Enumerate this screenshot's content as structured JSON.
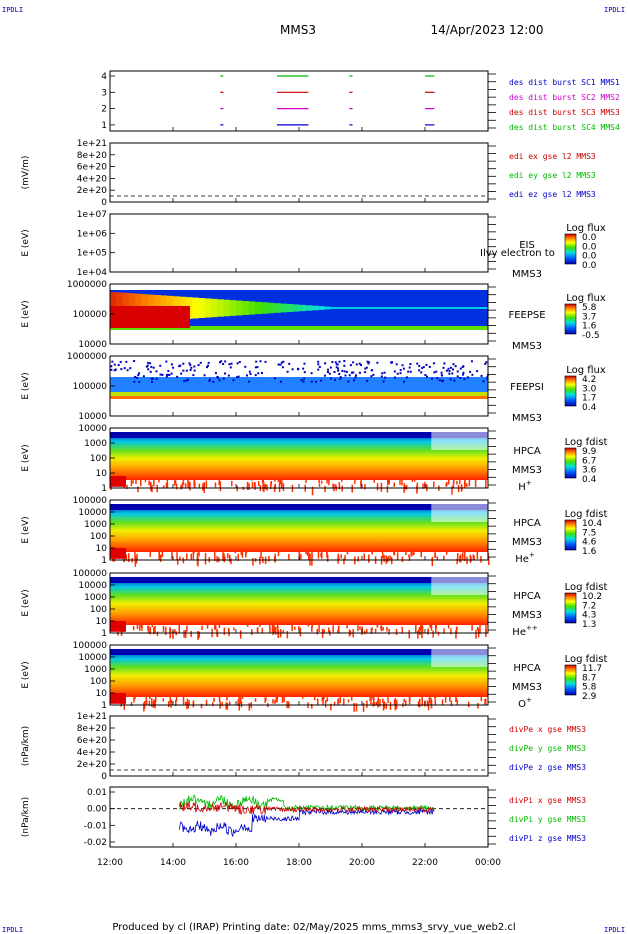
{
  "header": {
    "title": "MMS3",
    "datetime": "14/Apr/2023 12:00",
    "corner_tl": "IPDLI",
    "corner_tr": "IPDLI",
    "corner_bl": "IPDLI",
    "corner_br": "IPDLI"
  },
  "footer": {
    "text": "Produced by cl (IRAP)   Printing date: 02/May/2025   mms_mms3_srvy_vue_web2.cl"
  },
  "chart_data": {
    "type": "multi-panel spectrogram / time-series",
    "x_ticks": [
      "12:00",
      "14:00",
      "16:00",
      "18:00",
      "20:00",
      "22:00",
      "00:00"
    ],
    "xlim": [
      "12:00",
      "00:00"
    ],
    "panels": [
      {
        "type": "timeline",
        "yticks": [
          "4",
          "3",
          "2",
          "1"
        ],
        "ylabel": "",
        "legend": [
          {
            "label": "des dist burst SC1 MMS1",
            "color": "#0000cc"
          },
          {
            "label": "des dist burst SC2 MMS2",
            "color": "#cc00cc"
          },
          {
            "label": "des dist burst SC3 MMS3",
            "color": "#cc0000"
          },
          {
            "label": "des dist burst SC4 MMS4",
            "color": "#00bb00"
          }
        ],
        "intervals_hours": [
          [
            15.5,
            15.6
          ],
          [
            17.3,
            18.3
          ],
          [
            19.6,
            19.7
          ],
          [
            22.0,
            22.3
          ]
        ]
      },
      {
        "type": "line",
        "ylabel": "(mV/m)",
        "yticks": [
          "1e+21",
          "8e+20",
          "6e+20",
          "4e+20",
          "2e+20",
          "0"
        ],
        "legend": [
          {
            "label": "edi ex gse l2 MMS3",
            "color": "#cc0000"
          },
          {
            "label": "edi ey gse l2 MMS3",
            "color": "#00bb00"
          },
          {
            "label": "edi ez gse l2 MMS3",
            "color": "#0000cc"
          }
        ]
      },
      {
        "type": "heatmap",
        "ylabel": "E (eV)",
        "yticks": [
          "1e+07",
          "1e+06",
          "1e+05",
          "1e+04"
        ],
        "side": [
          "EIS",
          "MMS3"
        ],
        "overlay_label": "Ilvy electron to",
        "cb_title": "Log flux",
        "cb_ticks": [
          "0.0",
          "0.0",
          "0.0",
          "0.0"
        ]
      },
      {
        "type": "heatmap",
        "ylabel": "E (eV)",
        "yticks": [
          "1000000",
          "100000",
          "10000"
        ],
        "side": [
          "FEEPSE",
          "MMS3"
        ],
        "cb_title": "Log flux",
        "cb_ticks": [
          "5.8",
          "3.7",
          "1.6",
          "-0.5"
        ]
      },
      {
        "type": "heatmap",
        "ylabel": "E (eV)",
        "yticks": [
          "1000000",
          "100000",
          "10000"
        ],
        "side": [
          "FEEPSI",
          "MMS3"
        ],
        "cb_title": "Log flux",
        "cb_ticks": [
          "4.2",
          "3.0",
          "1.7",
          "0.4"
        ]
      },
      {
        "type": "heatmap",
        "ylabel": "E (eV)",
        "yticks": [
          "10000",
          "1000",
          "100",
          "10",
          "1"
        ],
        "side": [
          "HPCA",
          "MMS3"
        ],
        "species": "H",
        "charge": "+",
        "cb_title": "Log fdist",
        "cb_ticks": [
          "9.9",
          "6.7",
          "3.6",
          "0.4"
        ]
      },
      {
        "type": "heatmap",
        "ylabel": "E (eV)",
        "yticks": [
          "100000",
          "10000",
          "1000",
          "100",
          "10",
          "1"
        ],
        "side": [
          "HPCA",
          "MMS3"
        ],
        "species": "He",
        "charge": "+",
        "cb_title": "Log fdist",
        "cb_ticks": [
          "10.4",
          "7.5",
          "4.6",
          "1.6"
        ]
      },
      {
        "type": "heatmap",
        "ylabel": "E (eV)",
        "yticks": [
          "100000",
          "10000",
          "1000",
          "100",
          "10",
          "1"
        ],
        "side": [
          "HPCA",
          "MMS3"
        ],
        "species": "He",
        "charge": "++",
        "cb_title": "Log fdist",
        "cb_ticks": [
          "10.2",
          "7.2",
          "4.3",
          "1.3"
        ]
      },
      {
        "type": "heatmap",
        "ylabel": "E (eV)",
        "yticks": [
          "100000",
          "10000",
          "1000",
          "100",
          "10",
          "1"
        ],
        "side": [
          "HPCA",
          "MMS3"
        ],
        "species": "O",
        "charge": "+",
        "cb_title": "Log fdist",
        "cb_ticks": [
          "11.7",
          "8.7",
          "5.8",
          "2.9"
        ]
      },
      {
        "type": "line",
        "ylabel": "(nPa/km)",
        "yticks": [
          "1e+21",
          "8e+20",
          "6e+20",
          "4e+20",
          "2e+20",
          "0"
        ],
        "legend": [
          {
            "label": "divPe x gse MMS3",
            "color": "#cc0000"
          },
          {
            "label": "divPe y gse MMS3",
            "color": "#00bb00"
          },
          {
            "label": "divPe z gse MMS3",
            "color": "#0000cc"
          }
        ]
      },
      {
        "type": "line",
        "ylabel": "(nPa/km)",
        "yticks": [
          "0.01",
          "0.00",
          "-0.01",
          "-0.02"
        ],
        "ylim": [
          -0.023,
          0.013
        ],
        "legend": [
          {
            "label": "divPi x gse MMS3",
            "color": "#cc0000"
          },
          {
            "label": "divPi y gse MMS3",
            "color": "#00bb00"
          },
          {
            "label": "divPi z gse MMS3",
            "color": "#0000cc"
          }
        ]
      }
    ]
  }
}
